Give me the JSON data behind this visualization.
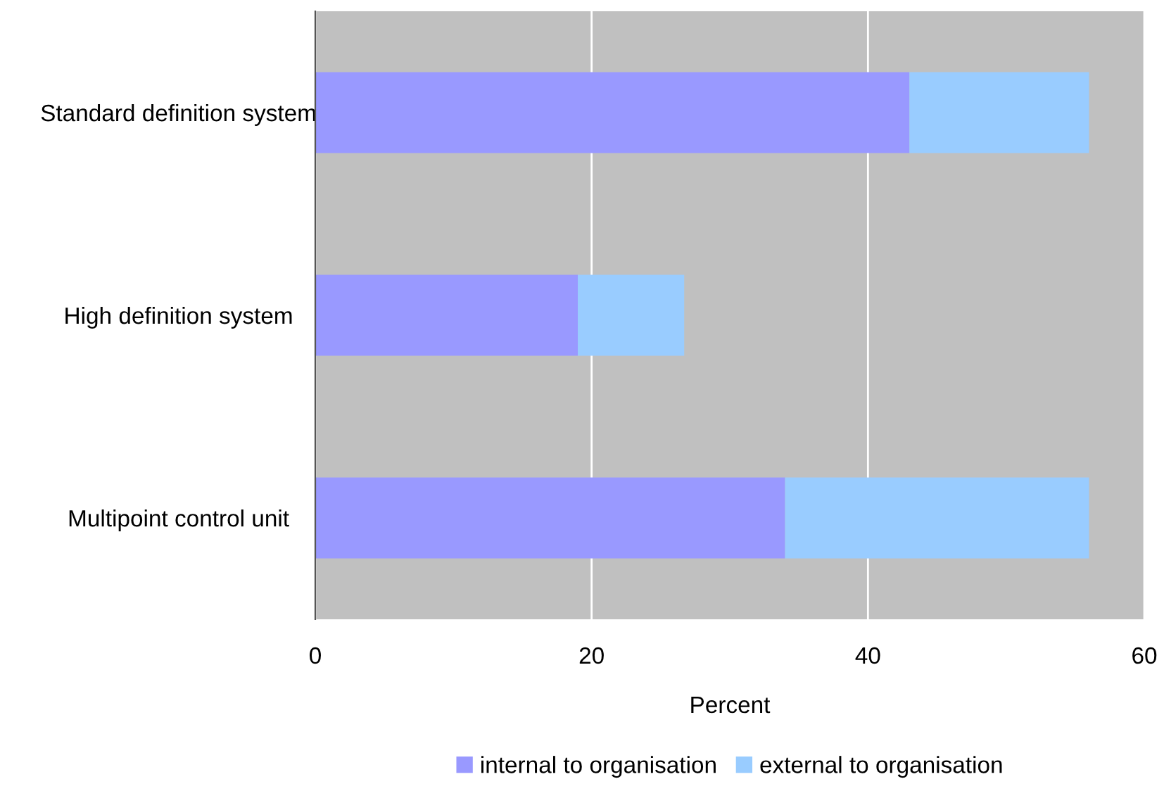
{
  "chart_data": {
    "type": "bar",
    "orientation": "horizontal",
    "stacked": true,
    "categories": [
      "Standard definition system",
      "High definition system",
      "Multipoint control unit"
    ],
    "series": [
      {
        "name": "internal to organisation",
        "color": "#9999ff",
        "values": [
          43,
          19,
          34
        ]
      },
      {
        "name": "external to organisation",
        "color": "#99ccff",
        "values": [
          13,
          7.7,
          22
        ]
      }
    ],
    "xlabel": "Percent",
    "xlim": [
      0,
      60
    ],
    "xticks": [
      0,
      20,
      40,
      60
    ],
    "grid": "x",
    "legend": "bottom"
  }
}
